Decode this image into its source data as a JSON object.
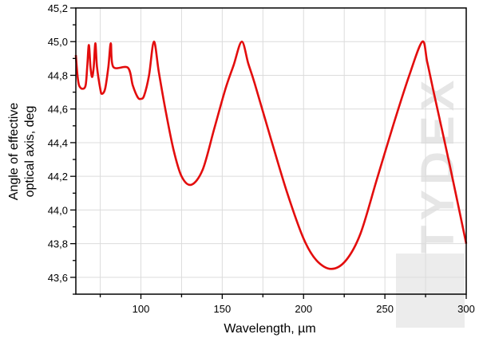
{
  "chart_data": {
    "type": "line",
    "title": "",
    "xlabel": "Wavelength, µm",
    "ylabel_lines": [
      "Angle of effective",
      "optical axis, deg"
    ],
    "xlim": [
      60,
      300
    ],
    "ylim": [
      43.5,
      45.2
    ],
    "xticks": [
      100,
      150,
      200,
      250,
      300
    ],
    "xtick_labels": [
      "100",
      "150",
      "200",
      "250",
      "300"
    ],
    "yticks": [
      43.6,
      43.8,
      44.0,
      44.2,
      44.4,
      44.6,
      44.8,
      45.0,
      45.2
    ],
    "ytick_labels": [
      "43,6",
      "43,8",
      "44,0",
      "44,2",
      "44,4",
      "44,6",
      "44,8",
      "45,0",
      "45,2"
    ],
    "grid": true,
    "legend": "none",
    "series_color": "#e30d0d",
    "watermark": "TYDEX",
    "series": [
      {
        "x": [
          60,
          61,
          62,
          64,
          66,
          67,
          68,
          69,
          70,
          71,
          72,
          73,
          75,
          76,
          78,
          80,
          81.5,
          83,
          92,
          95,
          98,
          100,
          102,
          105,
          108,
          111,
          115,
          120,
          125,
          131,
          138,
          145,
          152,
          157,
          162,
          166,
          170,
          180,
          190,
          200,
          208,
          217,
          226,
          235,
          245,
          255,
          265,
          273,
          276,
          280,
          290,
          300
        ],
        "y": [
          44.92,
          44.8,
          44.74,
          44.72,
          44.74,
          44.85,
          44.98,
          44.85,
          44.79,
          44.85,
          44.99,
          44.85,
          44.72,
          44.69,
          44.72,
          44.85,
          44.99,
          44.85,
          44.845,
          44.74,
          44.67,
          44.66,
          44.68,
          44.8,
          45.0,
          44.82,
          44.6,
          44.36,
          44.2,
          44.15,
          44.24,
          44.48,
          44.72,
          44.86,
          45.0,
          44.87,
          44.75,
          44.42,
          44.1,
          43.83,
          43.7,
          43.65,
          43.7,
          43.86,
          44.18,
          44.5,
          44.8,
          45.0,
          44.88,
          44.7,
          44.26,
          43.8
        ]
      }
    ]
  }
}
